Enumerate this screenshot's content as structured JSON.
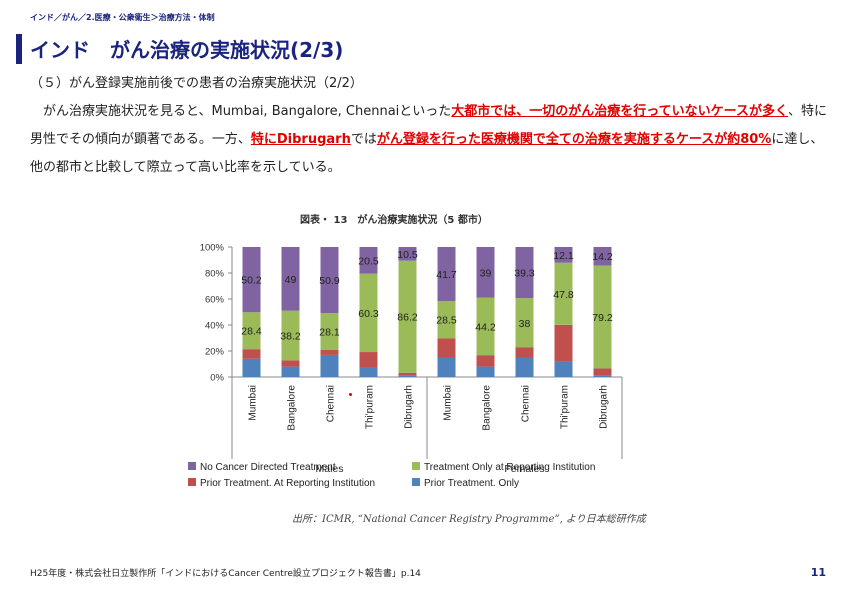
{
  "breadcrumb": "インド／がん／2.医療・公衆衛生＞治療方法・体制",
  "title": "インド　がん治療の実施状況(2/3)",
  "subheading": "（５）がん登録実施前後での患者の治療実施状況（2/2）",
  "paragraph": [
    {
      "text": "　がん治療実施状況を見ると、Mumbai, Bangalore, Chennaiといった",
      "hl": false
    },
    {
      "text": "大都市では、一切のがん治療を行っていないケースが多く",
      "hl": true
    },
    {
      "text": "、特に男性でその傾向が顕著である。一方、",
      "hl": false
    },
    {
      "text": "特にDibrugarh",
      "hl": true
    },
    {
      "text": "では",
      "hl": false
    },
    {
      "text": "がん登録を行った医療機関で全ての治療を実施するケースが約80%",
      "hl": true
    },
    {
      "text": "に達し、他の都市と比較して際立って高い比率を示している。",
      "hl": false
    }
  ],
  "chart_title": "図表・ 13　がん治療実施状況（5 都市）",
  "source": "出所：ICMR, “National Cancer Registry Programme”, より日本総研作成",
  "footer": "H25年度・株式会社日立製作所「インドにおけるCancer Centre設立プロジェクト報告書」p.14",
  "page_number": "11",
  "colors": {
    "no_cancer": "#8064a2",
    "reporting_only": "#9bbb59",
    "prior_at_reporting": "#c0504d",
    "prior_only": "#4f81bd",
    "accent": "#1a237e",
    "highlight": "#e00000"
  },
  "chart_data": {
    "type": "bar",
    "stacked": true,
    "ylim": [
      0,
      100
    ],
    "yticks": [
      "0%",
      "20%",
      "40%",
      "60%",
      "80%",
      "100%"
    ],
    "categories": [
      "Mumbai",
      "Bangalore",
      "Chennai",
      "Thi'puram",
      "Dibrugarh",
      "Mumbai",
      "Bangalore",
      "Chennai",
      "Thi'puram",
      "Dibrugarh"
    ],
    "groups": [
      {
        "label": "Males",
        "count": 5
      },
      {
        "label": "Females",
        "count": 5
      }
    ],
    "series": [
      {
        "name": "Prior Treatment. Only",
        "color": "#4f81bd",
        "values": [
          14,
          8,
          17,
          7,
          1,
          15,
          8,
          15,
          12,
          1
        ],
        "labels": [
          null,
          null,
          null,
          null,
          null,
          null,
          null,
          null,
          null,
          null
        ]
      },
      {
        "name": "Prior Treatment.  At Reporting Institution",
        "color": "#c0504d",
        "values": [
          7.4,
          4.8,
          4,
          12.2,
          2.3,
          14.8,
          8.8,
          7.7,
          28.1,
          5.6
        ],
        "labels": [
          null,
          null,
          null,
          null,
          null,
          null,
          null,
          null,
          null,
          null
        ]
      },
      {
        "name": "Treatment Only at Reporting Institution",
        "color": "#9bbb59",
        "values": [
          28.4,
          38.2,
          28.1,
          60.3,
          86.2,
          28.5,
          44.2,
          38,
          47.8,
          79.2
        ],
        "labels": [
          "28.4",
          "38.2",
          "28.1",
          "60.3",
          "86.2",
          "28.5",
          "44.2",
          "38",
          "47.8",
          "79.2"
        ]
      },
      {
        "name": "No Cancer Directed Treatment",
        "color": "#8064a2",
        "values": [
          50.2,
          49,
          50.9,
          20.5,
          10.5,
          41.7,
          39,
          39.3,
          12.1,
          14.2
        ],
        "labels": [
          "50.2",
          "49",
          "50.9",
          "20.5",
          "10.5",
          "41.7",
          "39",
          "39.3",
          "12.1",
          "14.2"
        ]
      }
    ],
    "legend": [
      {
        "name": "No Cancer Directed Treatment",
        "color": "#8064a2"
      },
      {
        "name": "Treatment Only at Reporting Institution",
        "color": "#9bbb59"
      },
      {
        "name": "Prior Treatment.  At Reporting Institution",
        "color": "#c0504d"
      },
      {
        "name": "Prior Treatment. Only",
        "color": "#4f81bd"
      }
    ],
    "legend_position": "bottom"
  }
}
